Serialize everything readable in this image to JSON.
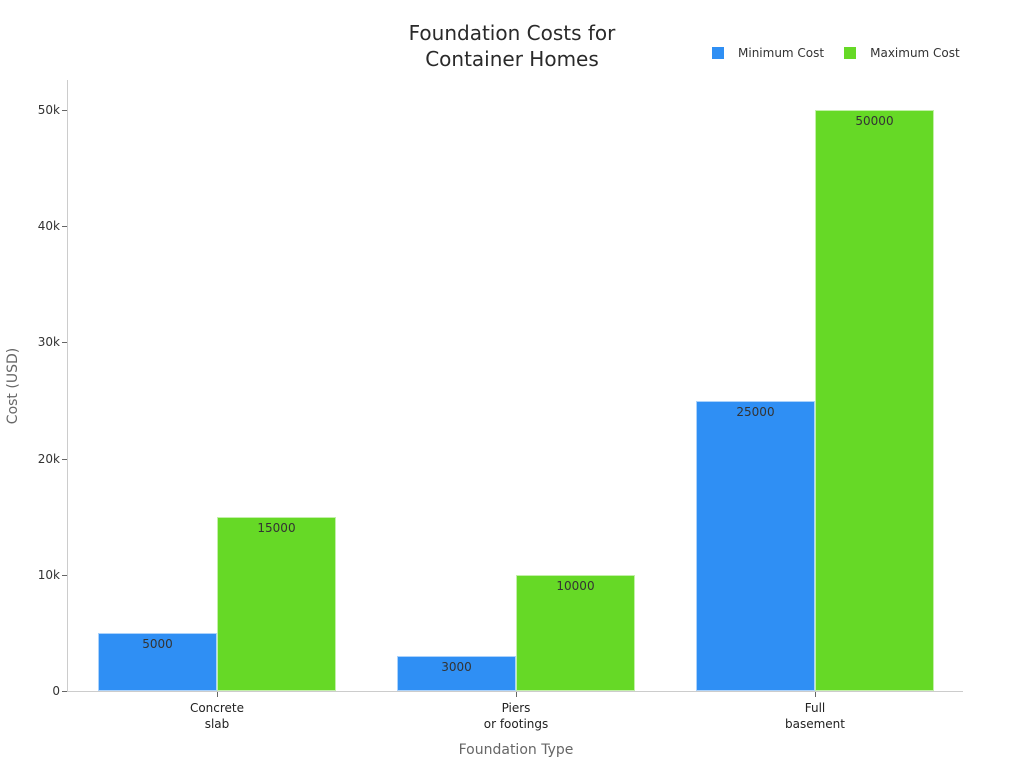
{
  "chart_data": {
    "type": "bar",
    "title": "Foundation Costs for Container Homes",
    "title_lines": [
      "Foundation Costs for",
      "Container Homes"
    ],
    "categories": [
      "Concrete slab",
      "Piers or footings",
      "Full basement"
    ],
    "category_lines": [
      [
        "Concrete",
        "slab"
      ],
      [
        "Piers",
        "or footings"
      ],
      [
        "Full",
        "basement"
      ]
    ],
    "series": [
      {
        "name": "Minimum Cost",
        "color": "#2f8ff4",
        "values": [
          5000,
          3000,
          25000
        ]
      },
      {
        "name": "Maximum Cost",
        "color": "#66d926",
        "values": [
          15000,
          10000,
          50000
        ]
      }
    ],
    "xlabel": "Foundation Type",
    "ylabel": "Cost (USD)",
    "ylim": [
      0,
      52500
    ],
    "yticks": [
      0,
      10000,
      20000,
      30000,
      40000,
      50000
    ],
    "ytick_labels": [
      "0",
      "10k",
      "20k",
      "30k",
      "40k",
      "50k"
    ],
    "grid": false,
    "legend_position": "top-right",
    "data_labels": true
  }
}
